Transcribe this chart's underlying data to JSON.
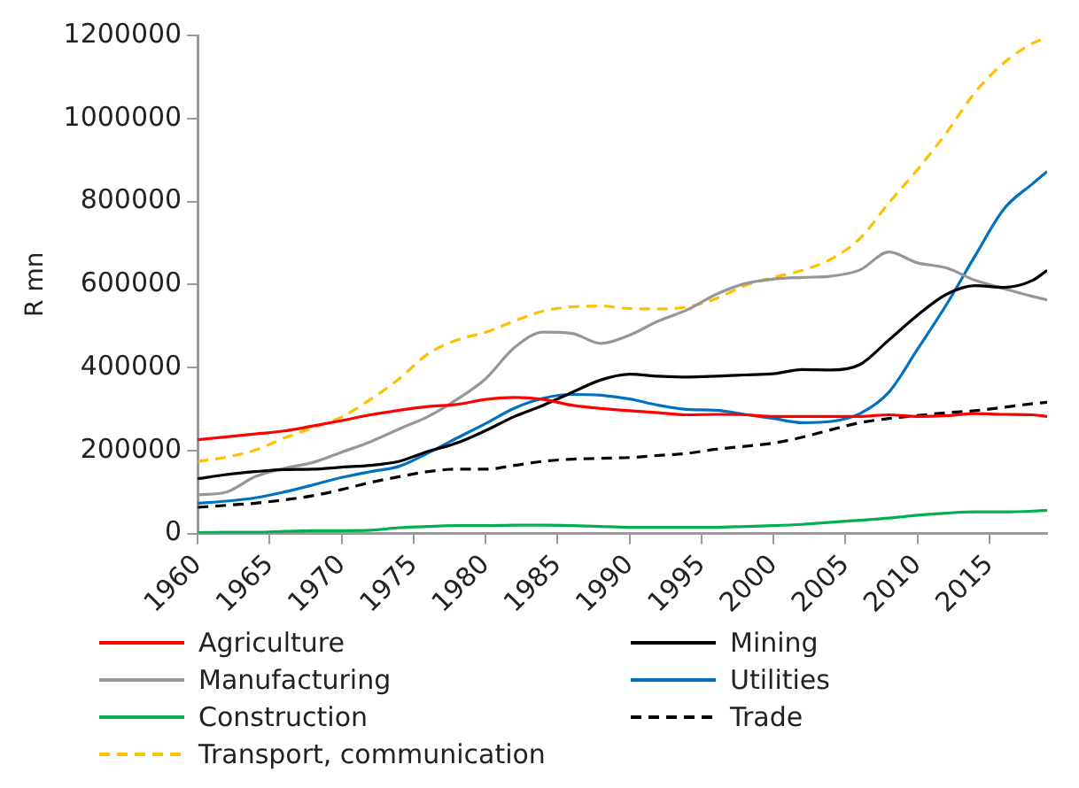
{
  "chart_data": {
    "type": "line",
    "ylabel": "R mn",
    "x": [
      1960,
      1962,
      1964,
      1966,
      1968,
      1970,
      1972,
      1974,
      1976,
      1978,
      1980,
      1982,
      1984,
      1986,
      1988,
      1990,
      1992,
      1994,
      1996,
      1998,
      2000,
      2002,
      2004,
      2006,
      2008,
      2010,
      2012,
      2014,
      2016,
      2018,
      2019
    ],
    "xlim": [
      1960,
      2019
    ],
    "xticks": [
      1960,
      1965,
      1970,
      1975,
      1980,
      1985,
      1990,
      1995,
      2000,
      2005,
      2010,
      2015
    ],
    "ylim": [
      0,
      1200000
    ],
    "yticks": [
      0,
      200000,
      400000,
      600000,
      800000,
      1000000,
      1200000
    ],
    "grid": false,
    "legend": "bottom",
    "marker": "none",
    "series": [
      {
        "name": "Agriculture",
        "color": "#ff0000",
        "line_style": "solid",
        "values": [
          226000,
          233000,
          240000,
          247000,
          259000,
          272000,
          286000,
          297000,
          306000,
          311000,
          323000,
          328000,
          323000,
          309000,
          301000,
          296000,
          291000,
          286000,
          287000,
          286000,
          282000,
          282000,
          282000,
          282000,
          286000,
          282000,
          284000,
          289000,
          287000,
          286000,
          282000
        ]
      },
      {
        "name": "Mining",
        "color": "#000000",
        "line_style": "solid",
        "values": [
          132000,
          142000,
          149000,
          154000,
          155000,
          160000,
          164000,
          174000,
          198000,
          218000,
          248000,
          282000,
          309000,
          340000,
          370000,
          384000,
          379000,
          377000,
          379000,
          382000,
          385000,
          395000,
          394000,
          407000,
          466000,
          526000,
          576000,
          597000,
          593000,
          610000,
          634000
        ]
      },
      {
        "name": "Manufacturing",
        "color": "#969696",
        "line_style": "solid",
        "values": [
          93000,
          100000,
          137000,
          157000,
          171000,
          196000,
          221000,
          252000,
          282000,
          323000,
          373000,
          448000,
          485000,
          482000,
          458000,
          478000,
          512000,
          539000,
          576000,
          602000,
          613000,
          617000,
          620000,
          635000,
          678000,
          652000,
          640000,
          610000,
          590000,
          571000,
          563000
        ]
      },
      {
        "name": "Utilities",
        "color": "#0070c0",
        "line_style": "solid",
        "values": [
          73000,
          78000,
          86000,
          100000,
          117000,
          135000,
          149000,
          162000,
          194000,
          230000,
          265000,
          302000,
          326000,
          335000,
          333000,
          324000,
          309000,
          299000,
          297000,
          287000,
          277000,
          267000,
          270000,
          289000,
          340000,
          444000,
          551000,
          669000,
          782000,
          843000,
          872000
        ]
      },
      {
        "name": "Construction",
        "color": "#00b050",
        "line_style": "solid",
        "values": [
          2000,
          3000,
          3000,
          5000,
          7000,
          7000,
          8000,
          14000,
          17000,
          19000,
          19000,
          20000,
          20000,
          19000,
          17000,
          15000,
          15000,
          15000,
          15000,
          17000,
          19000,
          22000,
          27000,
          32000,
          37000,
          44000,
          49000,
          52000,
          52000,
          54000,
          56000
        ]
      },
      {
        "name": "Trade",
        "color": "#000000",
        "line_style": "dashed",
        "values": [
          63000,
          68000,
          73000,
          81000,
          91000,
          106000,
          123000,
          137000,
          149000,
          155000,
          155000,
          164000,
          174000,
          179000,
          181000,
          183000,
          188000,
          193000,
          203000,
          210000,
          218000,
          232000,
          250000,
          267000,
          277000,
          284000,
          291000,
          296000,
          304000,
          313000,
          316000
        ]
      },
      {
        "name": "Transport, communication",
        "color": "#ffc000",
        "line_style": "dashed",
        "values": [
          174000,
          184000,
          201000,
          230000,
          255000,
          281000,
          323000,
          373000,
          433000,
          466000,
          485000,
          512000,
          536000,
          546000,
          548000,
          542000,
          541000,
          546000,
          566000,
          597000,
          617000,
          634000,
          661000,
          711000,
          796000,
          877000,
          965000,
          1063000,
          1134000,
          1181000,
          1195000
        ]
      }
    ]
  }
}
